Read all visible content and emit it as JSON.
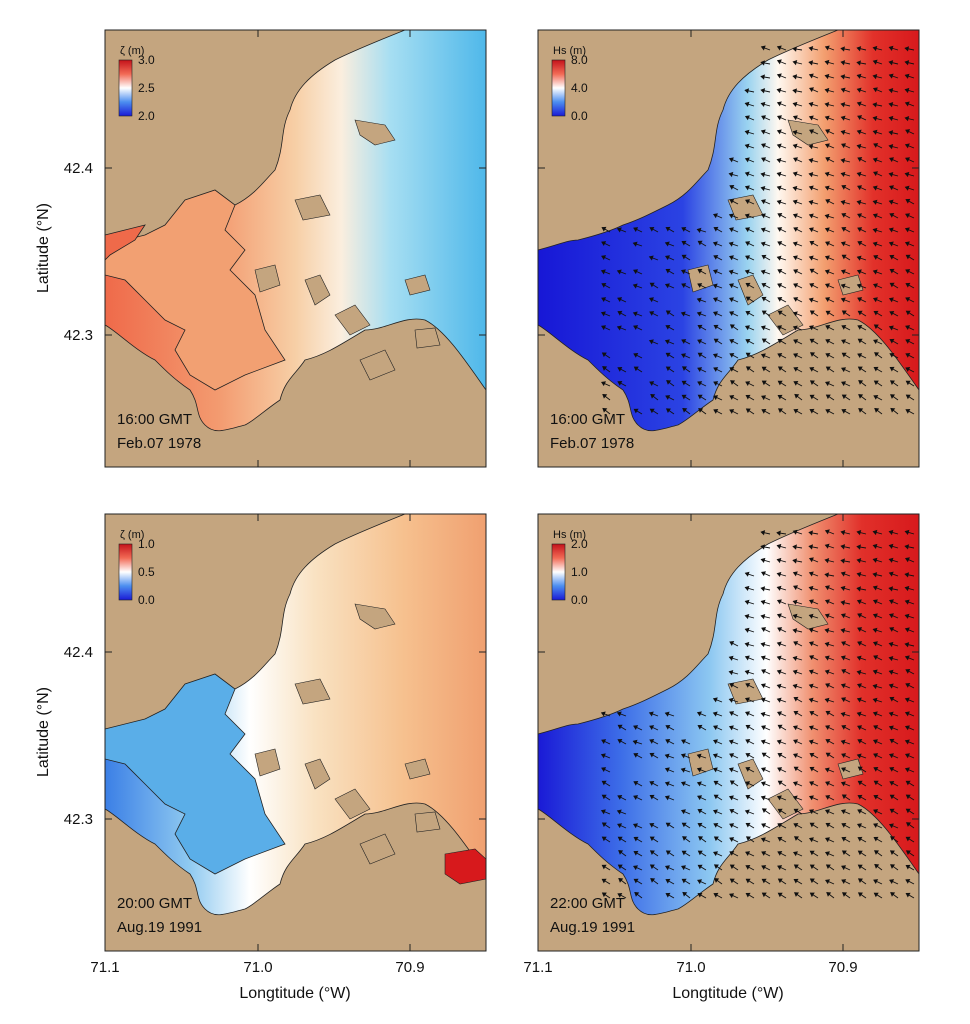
{
  "axes": {
    "ylabel": "Latitude (°N)",
    "xlabel": "Longtitude (°W)",
    "x_ticks": [
      "71.1",
      "71.0",
      "70.9"
    ],
    "y_ticks": [
      "42.4",
      "42.3"
    ]
  },
  "colors": {
    "land": "#c4a57f",
    "red": "#d7191c",
    "white": "#ffffff",
    "blue": "#1a1ad6",
    "lightblue": "#55c2ea",
    "orange": "#f19a6a",
    "peach": "#f7d4ae",
    "arrow": "#111111"
  },
  "panels": [
    {
      "id": "surge-1978",
      "variable": "ζ",
      "colorbar_title": "ζ  (m)",
      "colorbar_ticks": [
        "3.0",
        "2.5",
        "2.0"
      ],
      "time": "16:00 GMT",
      "date": "Feb.07 1978",
      "palette": "surge-high"
    },
    {
      "id": "waves-1978",
      "variable": "Hs",
      "colorbar_title": "Hs (m)",
      "colorbar_ticks": [
        "8.0",
        "4.0",
        "0.0"
      ],
      "time": "16:00 GMT",
      "date": "Feb.07 1978",
      "palette": "waves"
    },
    {
      "id": "surge-1991",
      "variable": "ζ",
      "colorbar_title": "ζ  (m)",
      "colorbar_ticks": [
        "1.0",
        "0.5",
        "0.0"
      ],
      "time": "20:00 GMT",
      "date": "Aug.19 1991",
      "palette": "surge-low"
    },
    {
      "id": "waves-1991",
      "variable": "Hs",
      "colorbar_title": "Hs (m)",
      "colorbar_ticks": [
        "2.0",
        "1.0",
        "0.0"
      ],
      "time": "22:00 GMT",
      "date": "Aug.19 1991",
      "palette": "waves"
    }
  ]
}
